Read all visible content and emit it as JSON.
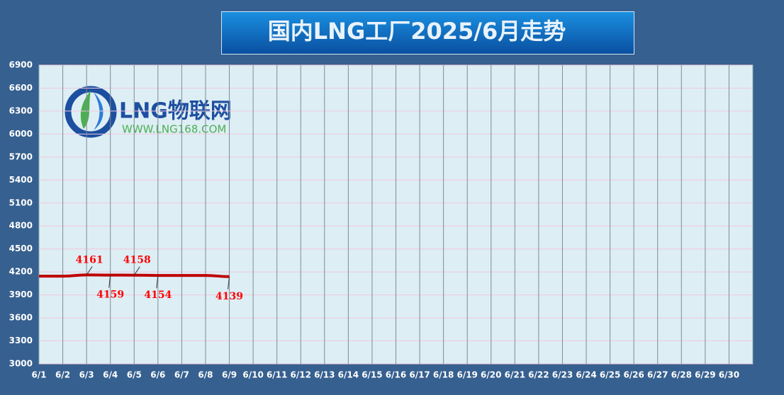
{
  "chart_data": {
    "type": "line",
    "title": "国内LNG工厂2025/6月走势",
    "logo_text": "LNG物联网",
    "logo_url": "WWW.LNG168.COM",
    "categories": [
      "6/1",
      "6/2",
      "6/3",
      "6/4",
      "6/5",
      "6/6",
      "6/7",
      "6/8",
      "6/9",
      "6/10",
      "6/11",
      "6/12",
      "6/13",
      "6/14",
      "6/15",
      "6/16",
      "6/17",
      "6/18",
      "6/19",
      "6/20",
      "6/21",
      "6/22",
      "6/23",
      "6/24",
      "6/25",
      "6/26",
      "6/27",
      "6/28",
      "6/29",
      "6/30"
    ],
    "series": [
      {
        "color": "#c00000",
        "values": [
          4145,
          4145,
          4161,
          4159,
          4158,
          4154,
          4154,
          4154,
          4139,
          null,
          null,
          null,
          null,
          null,
          null,
          null,
          null,
          null,
          null,
          null,
          null,
          null,
          null,
          null,
          null,
          null,
          null,
          null,
          null,
          null
        ],
        "value_labels": [
          null,
          null,
          "4161",
          "4159",
          "4158",
          "4154",
          null,
          null,
          "4139",
          null,
          null,
          null,
          null,
          null,
          null,
          null,
          null,
          null,
          null,
          null,
          null,
          null,
          null,
          null,
          null,
          null,
          null,
          null,
          null,
          null
        ]
      }
    ],
    "ylim": [
      3000,
      6900
    ],
    "yticks": [
      3000,
      3300,
      3600,
      3900,
      4200,
      4500,
      4800,
      5100,
      5400,
      5700,
      6000,
      6300,
      6600,
      6900
    ],
    "grid": true
  }
}
